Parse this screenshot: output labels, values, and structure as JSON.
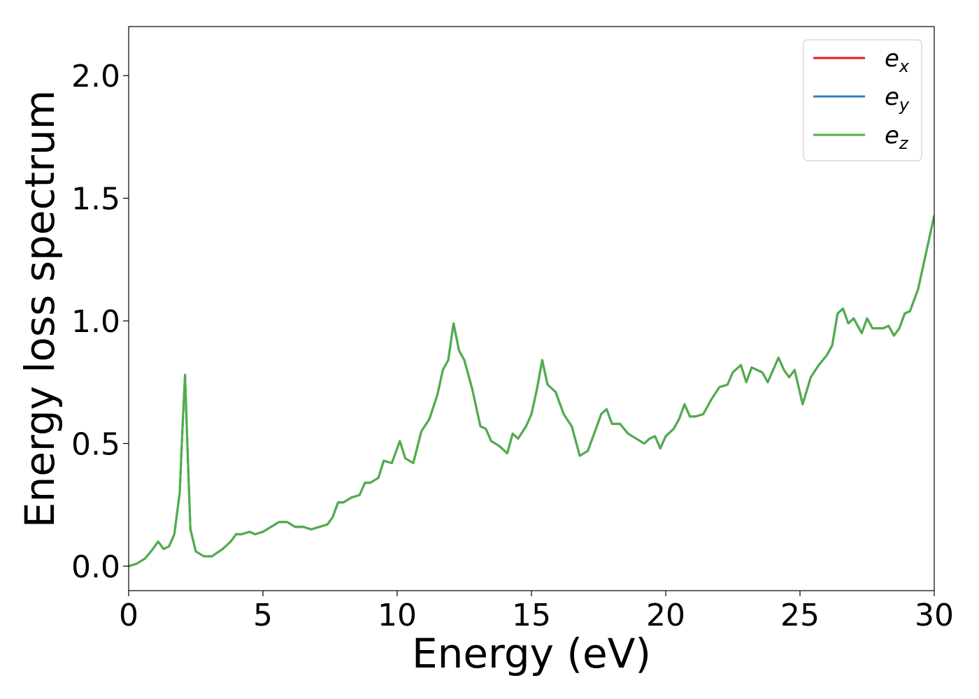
{
  "chart_data": {
    "type": "line",
    "title": "",
    "xlabel": "Energy (eV)",
    "ylabel": "Energy loss spectrum",
    "xlim": [
      0,
      30
    ],
    "ylim": [
      -0.1,
      2.2
    ],
    "x_ticks": [
      0,
      5,
      10,
      15,
      20,
      25,
      30
    ],
    "y_ticks": [
      0.0,
      0.5,
      1.0,
      1.5,
      2.0
    ],
    "x_tick_labels": [
      "0",
      "5",
      "10",
      "15",
      "20",
      "25",
      "30"
    ],
    "y_tick_labels": [
      "0.0",
      "0.5",
      "1.0",
      "1.5",
      "2.0"
    ],
    "grid": false,
    "legend_position": "top-right",
    "series": [
      {
        "name": "e_x",
        "label_main": "e",
        "label_sub": "x",
        "color": "#e41a1c",
        "x": [
          0,
          0.3,
          0.6,
          0.9,
          1.1,
          1.3,
          1.5,
          1.7,
          1.9,
          2.0,
          2.1,
          2.2,
          2.3,
          2.5,
          2.8,
          3.1,
          3.5,
          3.8,
          4.0,
          4.2,
          4.5,
          4.7,
          5.0,
          5.3,
          5.6,
          5.9,
          6.2,
          6.5,
          6.8,
          7.1,
          7.4,
          7.6,
          7.8,
          8.0,
          8.3,
          8.6,
          8.8,
          9.0,
          9.3,
          9.5,
          9.8,
          10.1,
          10.3,
          10.6,
          10.9,
          11.2,
          11.5,
          11.7,
          11.9,
          12.1,
          12.3,
          12.5,
          12.8,
          13.1,
          13.3,
          13.5,
          13.8,
          14.1,
          14.3,
          14.5,
          14.8,
          15.0,
          15.2,
          15.4,
          15.6,
          15.9,
          16.2,
          16.5,
          16.8,
          17.1,
          17.4,
          17.6,
          17.8,
          18.0,
          18.3,
          18.6,
          18.9,
          19.2,
          19.4,
          19.6,
          19.8,
          20.0,
          20.3,
          20.5,
          20.7,
          20.9,
          21.1,
          21.4,
          21.7,
          22.0,
          22.3,
          22.5,
          22.8,
          23.0,
          23.2,
          23.4,
          23.6,
          23.8,
          24.0,
          24.2,
          24.4,
          24.6,
          24.8,
          25.1,
          25.4,
          25.7,
          26.0,
          26.2,
          26.4,
          26.6,
          26.8,
          27.0,
          27.3,
          27.5,
          27.7,
          27.9,
          28.1,
          28.3,
          28.5,
          28.7,
          28.9,
          29.1,
          29.4,
          29.7,
          30.0
        ],
        "y": [
          0.0,
          0.01,
          0.03,
          0.07,
          0.1,
          0.07,
          0.08,
          0.13,
          0.3,
          0.55,
          0.78,
          0.45,
          0.15,
          0.06,
          0.04,
          0.04,
          0.07,
          0.1,
          0.13,
          0.13,
          0.14,
          0.13,
          0.14,
          0.16,
          0.18,
          0.18,
          0.16,
          0.16,
          0.15,
          0.16,
          0.17,
          0.2,
          0.26,
          0.26,
          0.28,
          0.29,
          0.34,
          0.34,
          0.36,
          0.43,
          0.42,
          0.51,
          0.44,
          0.42,
          0.55,
          0.6,
          0.7,
          0.8,
          0.84,
          0.99,
          0.88,
          0.84,
          0.72,
          0.57,
          0.56,
          0.51,
          0.49,
          0.46,
          0.54,
          0.52,
          0.57,
          0.62,
          0.72,
          0.84,
          0.74,
          0.71,
          0.62,
          0.57,
          0.45,
          0.47,
          0.56,
          0.62,
          0.64,
          0.58,
          0.58,
          0.54,
          0.52,
          0.5,
          0.52,
          0.53,
          0.48,
          0.53,
          0.56,
          0.6,
          0.66,
          0.61,
          0.61,
          0.62,
          0.68,
          0.73,
          0.74,
          0.79,
          0.82,
          0.75,
          0.81,
          0.8,
          0.79,
          0.75,
          0.8,
          0.85,
          0.8,
          0.77,
          0.8,
          0.66,
          0.77,
          0.82,
          0.86,
          0.9,
          1.03,
          1.05,
          0.99,
          1.01,
          0.95,
          1.01,
          0.97,
          0.97,
          0.97,
          0.98,
          0.94,
          0.97,
          1.03,
          1.04,
          1.13,
          1.28,
          1.43
        ]
      },
      {
        "name": "e_y",
        "label_main": "e",
        "label_sub": "y",
        "color": "#377eb8",
        "x": [
          0,
          0.3,
          0.6,
          0.9,
          1.1,
          1.3,
          1.5,
          1.7,
          1.9,
          2.0,
          2.1,
          2.2,
          2.3,
          2.5,
          2.8,
          3.1,
          3.5,
          3.8,
          4.0,
          4.2,
          4.5,
          4.7,
          5.0,
          5.3,
          5.6,
          5.9,
          6.2,
          6.5,
          6.8,
          7.1,
          7.4,
          7.6,
          7.8,
          8.0,
          8.3,
          8.6,
          8.8,
          9.0,
          9.3,
          9.5,
          9.8,
          10.1,
          10.3,
          10.6,
          10.9,
          11.2,
          11.5,
          11.7,
          11.9,
          12.1,
          12.3,
          12.5,
          12.8,
          13.1,
          13.3,
          13.5,
          13.8,
          14.1,
          14.3,
          14.5,
          14.8,
          15.0,
          15.2,
          15.4,
          15.6,
          15.9,
          16.2,
          16.5,
          16.8,
          17.1,
          17.4,
          17.6,
          17.8,
          18.0,
          18.3,
          18.6,
          18.9,
          19.2,
          19.4,
          19.6,
          19.8,
          20.0,
          20.3,
          20.5,
          20.7,
          20.9,
          21.1,
          21.4,
          21.7,
          22.0,
          22.3,
          22.5,
          22.8,
          23.0,
          23.2,
          23.4,
          23.6,
          23.8,
          24.0,
          24.2,
          24.4,
          24.6,
          24.8,
          25.1,
          25.4,
          25.7,
          26.0,
          26.2,
          26.4,
          26.6,
          26.8,
          27.0,
          27.3,
          27.5,
          27.7,
          27.9,
          28.1,
          28.3,
          28.5,
          28.7,
          28.9,
          29.1,
          29.4,
          29.7,
          30.0
        ],
        "y": [
          0.0,
          0.01,
          0.03,
          0.07,
          0.1,
          0.07,
          0.08,
          0.13,
          0.3,
          0.55,
          0.78,
          0.45,
          0.15,
          0.06,
          0.04,
          0.04,
          0.07,
          0.1,
          0.13,
          0.13,
          0.14,
          0.13,
          0.14,
          0.16,
          0.18,
          0.18,
          0.16,
          0.16,
          0.15,
          0.16,
          0.17,
          0.2,
          0.26,
          0.26,
          0.28,
          0.29,
          0.34,
          0.34,
          0.36,
          0.43,
          0.42,
          0.51,
          0.44,
          0.42,
          0.55,
          0.6,
          0.7,
          0.8,
          0.84,
          0.99,
          0.88,
          0.84,
          0.72,
          0.57,
          0.56,
          0.51,
          0.49,
          0.46,
          0.54,
          0.52,
          0.57,
          0.62,
          0.72,
          0.84,
          0.74,
          0.71,
          0.62,
          0.57,
          0.45,
          0.47,
          0.56,
          0.62,
          0.64,
          0.58,
          0.58,
          0.54,
          0.52,
          0.5,
          0.52,
          0.53,
          0.48,
          0.53,
          0.56,
          0.6,
          0.66,
          0.61,
          0.61,
          0.62,
          0.68,
          0.73,
          0.74,
          0.79,
          0.82,
          0.75,
          0.81,
          0.8,
          0.79,
          0.75,
          0.8,
          0.85,
          0.8,
          0.77,
          0.8,
          0.66,
          0.77,
          0.82,
          0.86,
          0.9,
          1.03,
          1.05,
          0.99,
          1.01,
          0.95,
          1.01,
          0.97,
          0.97,
          0.97,
          0.98,
          0.94,
          0.97,
          1.03,
          1.04,
          1.13,
          1.28,
          1.43
        ]
      },
      {
        "name": "e_z",
        "label_main": "e",
        "label_sub": "z",
        "color": "#4daf4a",
        "x": [
          0,
          0.3,
          0.6,
          0.9,
          1.1,
          1.3,
          1.5,
          1.7,
          1.9,
          2.0,
          2.1,
          2.2,
          2.3,
          2.5,
          2.8,
          3.1,
          3.5,
          3.8,
          4.0,
          4.2,
          4.5,
          4.7,
          5.0,
          5.3,
          5.6,
          5.9,
          6.2,
          6.5,
          6.8,
          7.1,
          7.4,
          7.6,
          7.8,
          8.0,
          8.3,
          8.6,
          8.8,
          9.0,
          9.3,
          9.5,
          9.8,
          10.1,
          10.3,
          10.6,
          10.9,
          11.2,
          11.5,
          11.7,
          11.9,
          12.1,
          12.3,
          12.5,
          12.8,
          13.1,
          13.3,
          13.5,
          13.8,
          14.1,
          14.3,
          14.5,
          14.8,
          15.0,
          15.2,
          15.4,
          15.6,
          15.9,
          16.2,
          16.5,
          16.8,
          17.1,
          17.4,
          17.6,
          17.8,
          18.0,
          18.3,
          18.6,
          18.9,
          19.2,
          19.4,
          19.6,
          19.8,
          20.0,
          20.3,
          20.5,
          20.7,
          20.9,
          21.1,
          21.4,
          21.7,
          22.0,
          22.3,
          22.5,
          22.8,
          23.0,
          23.2,
          23.4,
          23.6,
          23.8,
          24.0,
          24.2,
          24.4,
          24.6,
          24.8,
          25.1,
          25.4,
          25.7,
          26.0,
          26.2,
          26.4,
          26.6,
          26.8,
          27.0,
          27.3,
          27.5,
          27.7,
          27.9,
          28.1,
          28.3,
          28.5,
          28.7,
          28.9,
          29.1,
          29.4,
          29.7,
          30.0
        ],
        "y": [
          0.0,
          0.01,
          0.03,
          0.07,
          0.1,
          0.07,
          0.08,
          0.13,
          0.3,
          0.55,
          0.78,
          0.45,
          0.15,
          0.06,
          0.04,
          0.04,
          0.07,
          0.1,
          0.13,
          0.13,
          0.14,
          0.13,
          0.14,
          0.16,
          0.18,
          0.18,
          0.16,
          0.16,
          0.15,
          0.16,
          0.17,
          0.2,
          0.26,
          0.26,
          0.28,
          0.29,
          0.34,
          0.34,
          0.36,
          0.43,
          0.42,
          0.51,
          0.44,
          0.42,
          0.55,
          0.6,
          0.7,
          0.8,
          0.84,
          0.99,
          0.88,
          0.84,
          0.72,
          0.57,
          0.56,
          0.51,
          0.49,
          0.46,
          0.54,
          0.52,
          0.57,
          0.62,
          0.72,
          0.84,
          0.74,
          0.71,
          0.62,
          0.57,
          0.45,
          0.47,
          0.56,
          0.62,
          0.64,
          0.58,
          0.58,
          0.54,
          0.52,
          0.5,
          0.52,
          0.53,
          0.48,
          0.53,
          0.56,
          0.6,
          0.66,
          0.61,
          0.61,
          0.62,
          0.68,
          0.73,
          0.74,
          0.79,
          0.82,
          0.75,
          0.81,
          0.8,
          0.79,
          0.75,
          0.8,
          0.85,
          0.8,
          0.77,
          0.8,
          0.66,
          0.77,
          0.82,
          0.86,
          0.9,
          1.03,
          1.05,
          0.99,
          1.01,
          0.95,
          1.01,
          0.97,
          0.97,
          0.97,
          0.98,
          0.94,
          0.97,
          1.03,
          1.04,
          1.13,
          1.28,
          1.43
        ]
      }
    ]
  }
}
